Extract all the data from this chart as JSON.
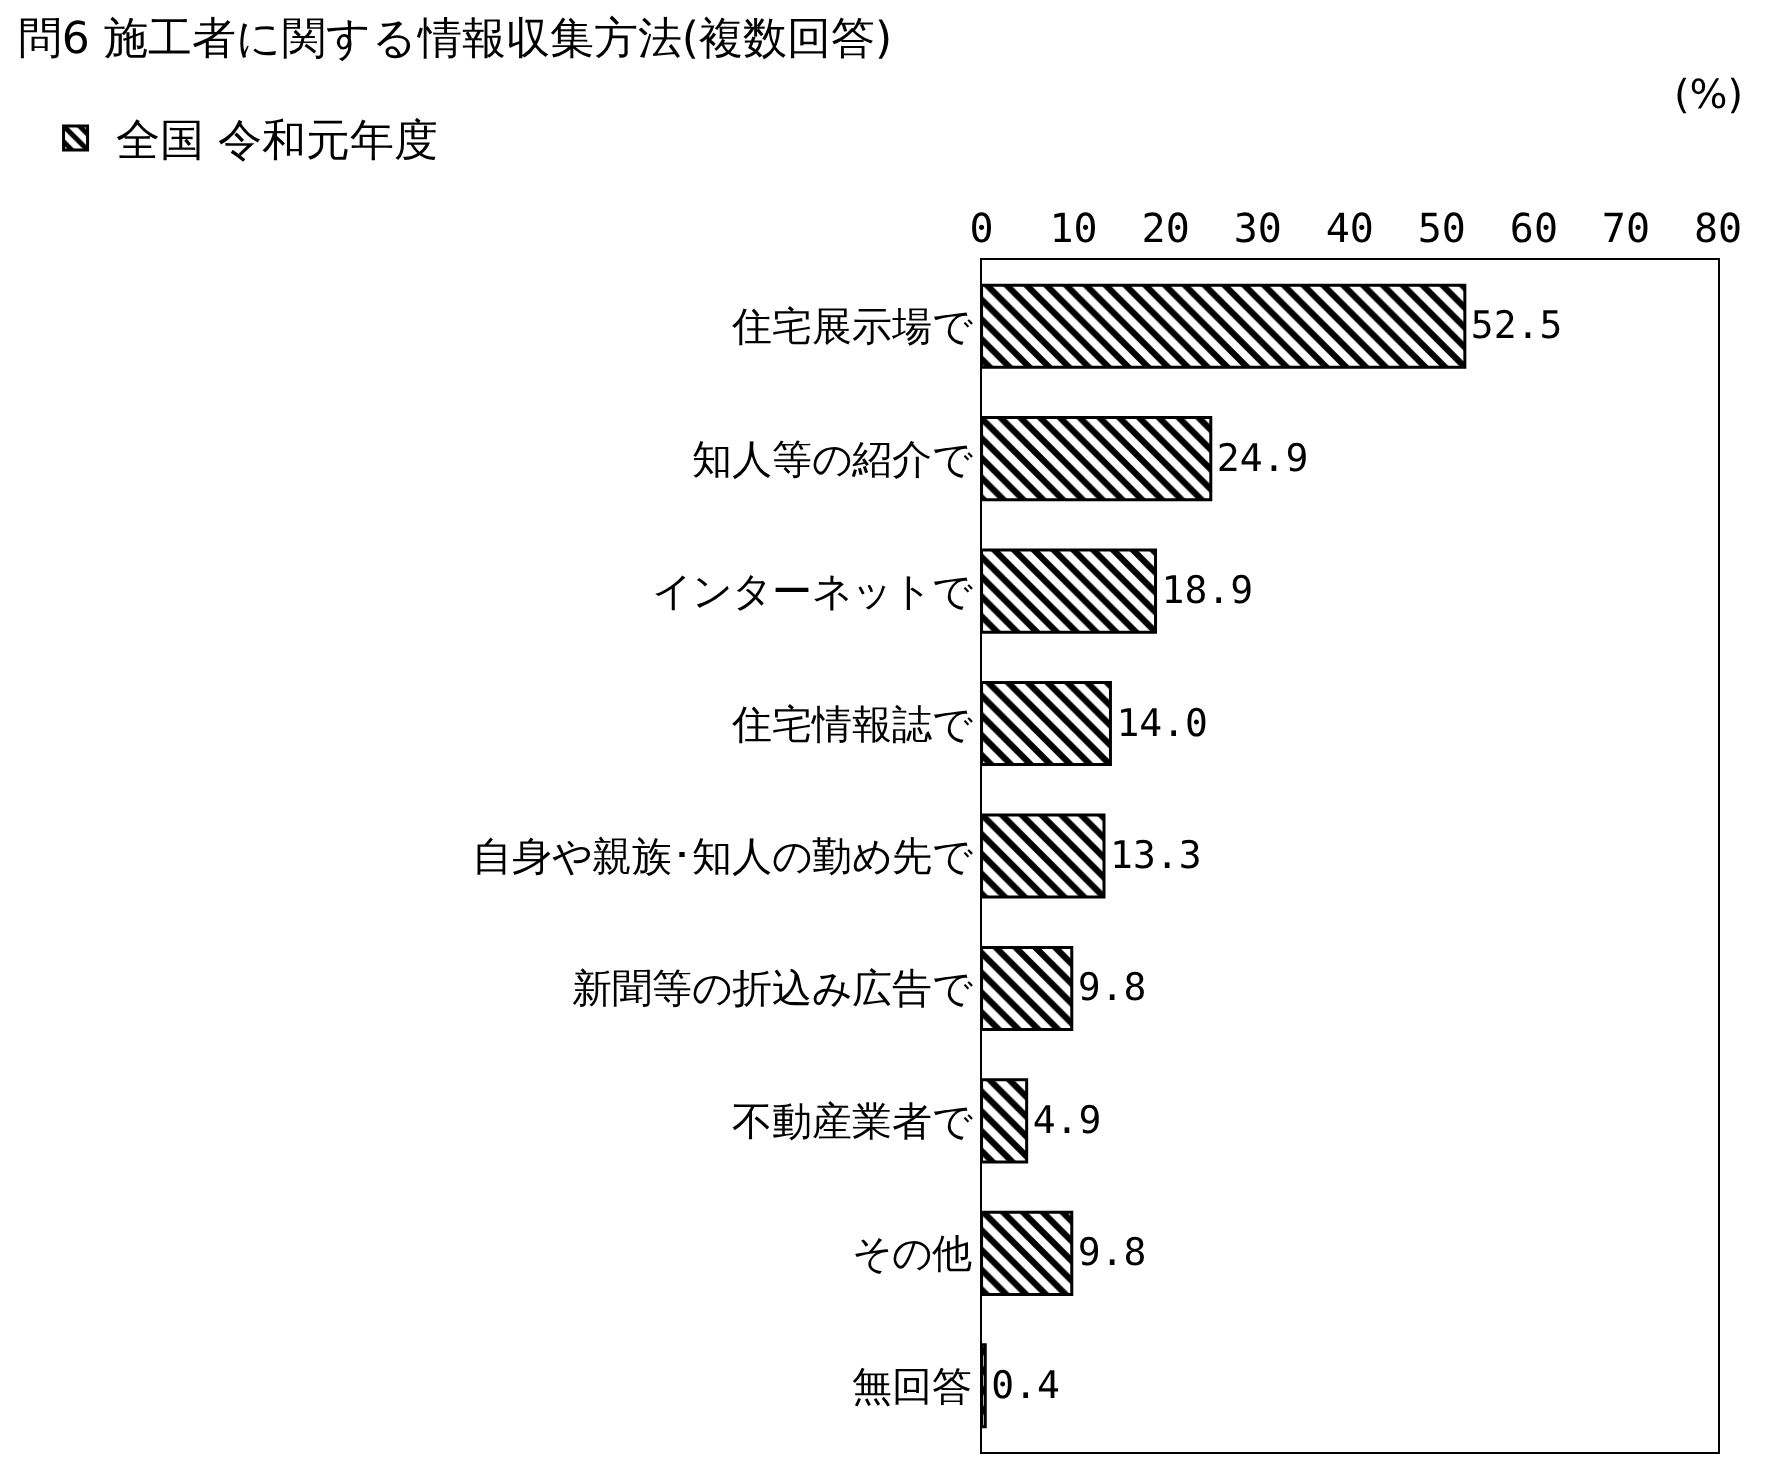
{
  "chart_data": {
    "type": "bar",
    "orientation": "horizontal",
    "title": "問6 施工者に関する情報収集方法(複数回答)",
    "categories": [
      "住宅展示場で",
      "知人等の紹介で",
      "インターネットで",
      "住宅情報誌で",
      "自身や親族･知人の勤め先で",
      "新聞等の折込み広告で",
      "不動産業者で",
      "その他",
      "無回答"
    ],
    "series": [
      {
        "name": "全国 令和元年度",
        "color": "#000000",
        "values": [
          52.5,
          24.9,
          18.9,
          14.0,
          13.3,
          9.8,
          4.9,
          9.8,
          0.4
        ],
        "value_labels": [
          "52.5",
          "24.9",
          "18.9",
          "14.0",
          "13.3",
          "9.8",
          "4.9",
          "9.8",
          "0.4"
        ]
      }
    ],
    "xlim": [
      0,
      80
    ],
    "xticks": [
      0,
      10,
      20,
      30,
      40,
      50,
      60,
      70,
      80
    ],
    "annotations": [
      "(%)"
    ],
    "grid": false,
    "legend": "top left"
  }
}
